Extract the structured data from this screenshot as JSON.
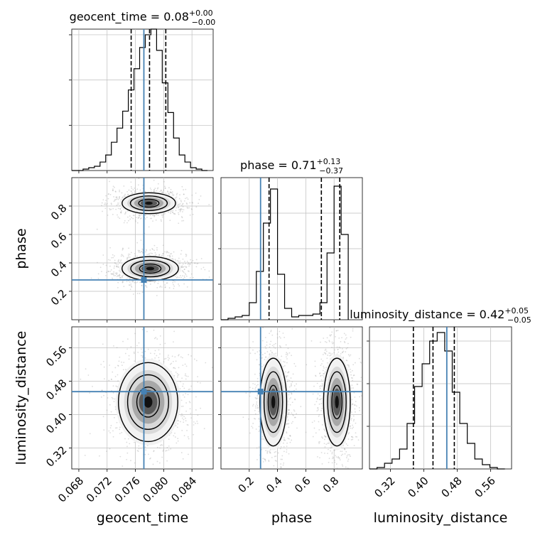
{
  "chart_data": [
    {
      "type": "histogram",
      "param": "geocent_time",
      "title": {
        "main": "geocent_time = 0.08",
        "sup": "+0.00",
        "sub": "−0.00"
      },
      "xlim": [
        0.067,
        0.087
      ],
      "ylim": [
        0,
        1.0
      ],
      "quantiles": [
        0.0754,
        0.078,
        0.0803
      ],
      "truth": 0.0772,
      "bin_edges": [
        0.067,
        0.0678,
        0.0686,
        0.0694,
        0.0702,
        0.071,
        0.0718,
        0.0726,
        0.0734,
        0.0742,
        0.075,
        0.0758,
        0.0766,
        0.0774,
        0.0782,
        0.079,
        0.0798,
        0.0806,
        0.0814,
        0.0822,
        0.083,
        0.0838,
        0.0846,
        0.0854,
        0.0862
      ],
      "counts": [
        0.0,
        0.0,
        0.01,
        0.02,
        0.03,
        0.06,
        0.11,
        0.2,
        0.3,
        0.42,
        0.57,
        0.72,
        0.87,
        0.96,
        1.0,
        0.85,
        0.62,
        0.41,
        0.23,
        0.11,
        0.06,
        0.02,
        0.01,
        0.0
      ],
      "yticks": [
        0,
        0.32,
        0.64,
        0.96
      ]
    },
    {
      "type": "histogram",
      "param": "phase",
      "title": {
        "main": "phase = 0.71",
        "sup": "+0.13",
        "sub": "−0.37"
      },
      "xlim": [
        0.0,
        1.0
      ],
      "ylim": [
        0,
        1.0
      ],
      "quantiles": [
        0.34,
        0.71,
        0.84
      ],
      "truth": 0.28,
      "bin_edges": [
        0.0,
        0.05,
        0.1,
        0.15,
        0.2,
        0.25,
        0.3,
        0.35,
        0.4,
        0.45,
        0.5,
        0.55,
        0.6,
        0.65,
        0.7,
        0.75,
        0.8,
        0.85,
        0.9
      ],
      "counts": [
        0.0,
        0.01,
        0.02,
        0.03,
        0.12,
        0.34,
        0.68,
        0.92,
        0.32,
        0.08,
        0.02,
        0.03,
        0.03,
        0.04,
        0.12,
        0.47,
        0.94,
        0.6,
        0.0
      ],
      "yticks": [
        0,
        0.25,
        0.5,
        0.75
      ]
    },
    {
      "type": "histogram",
      "param": "luminosity_distance",
      "title": {
        "main": "luminosity_distance = 0.42",
        "sup": "+0.05",
        "sub": "−0.05"
      },
      "xlim": [
        0.27,
        0.61
      ],
      "ylim": [
        0,
        1.0
      ],
      "quantiles": [
        0.375,
        0.422,
        0.473
      ],
      "truth": 0.455,
      "bin_edges": [
        0.27,
        0.288,
        0.306,
        0.324,
        0.342,
        0.36,
        0.378,
        0.396,
        0.414,
        0.432,
        0.45,
        0.468,
        0.486,
        0.504,
        0.522,
        0.54,
        0.558,
        0.576,
        0.594
      ],
      "counts": [
        0.0,
        0.01,
        0.04,
        0.07,
        0.14,
        0.32,
        0.58,
        0.74,
        0.9,
        0.96,
        0.83,
        0.54,
        0.32,
        0.18,
        0.07,
        0.03,
        0.01,
        0.0
      ],
      "yticks": [
        0,
        0.3,
        0.6,
        0.9
      ]
    },
    {
      "type": "scatter",
      "x_param": "geocent_time",
      "y_param": "phase",
      "xlim": [
        0.067,
        0.087
      ],
      "ylim": [
        0.0,
        1.0
      ],
      "truth": [
        0.0772,
        0.28
      ],
      "modes": [
        {
          "cx": 0.0779,
          "cy": 0.82,
          "sx": 0.0018,
          "sy": 0.035,
          "w": 1.0
        },
        {
          "cx": 0.0781,
          "cy": 0.36,
          "sx": 0.0019,
          "sy": 0.04,
          "w": 1.0
        }
      ],
      "yticks": [
        0.2,
        0.4,
        0.6,
        0.8
      ],
      "ylabel": "phase"
    },
    {
      "type": "scatter",
      "x_param": "geocent_time",
      "y_param": "luminosity_distance",
      "xlim": [
        0.067,
        0.087
      ],
      "ylim": [
        0.27,
        0.61
      ],
      "truth": [
        0.0772,
        0.455
      ],
      "modes": [
        {
          "cx": 0.0778,
          "cy": 0.43,
          "sx": 0.002,
          "sy": 0.045,
          "w": 1.0
        }
      ],
      "yticks": [
        0.32,
        0.4,
        0.48,
        0.56
      ],
      "xticks": [
        0.068,
        0.072,
        0.076,
        0.08,
        0.084
      ],
      "xlabel": "geocent_time",
      "ylabel": "luminosity_distance"
    },
    {
      "type": "scatter",
      "x_param": "phase",
      "y_param": "luminosity_distance",
      "xlim": [
        0.0,
        1.0
      ],
      "ylim": [
        0.27,
        0.61
      ],
      "truth": [
        0.28,
        0.455
      ],
      "modes": [
        {
          "cx": 0.37,
          "cy": 0.43,
          "sx": 0.045,
          "sy": 0.05,
          "w": 1.0
        },
        {
          "cx": 0.82,
          "cy": 0.43,
          "sx": 0.045,
          "sy": 0.05,
          "w": 1.0
        }
      ],
      "xticks": [
        0.2,
        0.4,
        0.6,
        0.8
      ],
      "xlabel": "phase"
    },
    {
      "type": "axis",
      "param": "luminosity_distance",
      "xticks": [
        0.32,
        0.4,
        0.48,
        0.56
      ],
      "xlabel": "luminosity_distance"
    }
  ],
  "colors": {
    "truth": "#4682b4",
    "hist": "#000000",
    "grid": "#bdbdbd",
    "point": "#9a9a9a"
  }
}
